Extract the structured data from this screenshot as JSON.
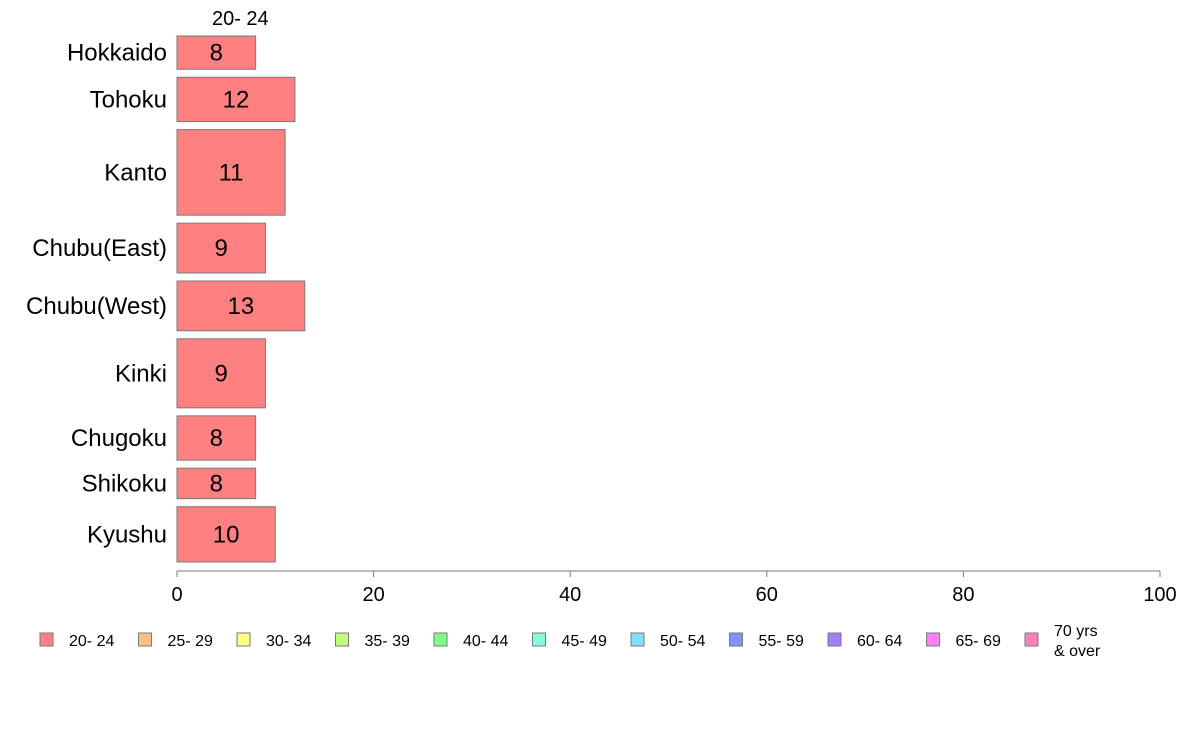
{
  "chart_data": {
    "type": "bar",
    "orientation": "horizontal",
    "stacked": true,
    "title": "",
    "xlabel": "",
    "ylabel": "",
    "xlim": [
      0,
      100
    ],
    "x_ticks": [
      "0",
      "20",
      "40",
      "60",
      "80",
      "100"
    ],
    "grid": false,
    "legend_position": "bottom",
    "categories": [
      "Hokkaido",
      "Tohoku",
      "Kanto",
      "Chubu(East)",
      "Chubu(West)",
      "Kinki",
      "Chugoku",
      "Shikoku",
      "Kyushu"
    ],
    "category_weights": [
      0.75,
      0.95,
      1.7,
      1.05,
      1.05,
      1.4,
      0.95,
      0.7,
      1.15
    ],
    "series": [
      {
        "name": "20- 24",
        "color": "#ff8080",
        "values": [
          8,
          12,
          11,
          9,
          13,
          9,
          8,
          8,
          10
        ]
      }
    ],
    "series_header": "20- 24",
    "legend": [
      {
        "label": "20- 24",
        "color": "#ff8080"
      },
      {
        "label": "25- 29",
        "color": "#ffc080"
      },
      {
        "label": "30- 34",
        "color": "#ffff80"
      },
      {
        "label": "35- 39",
        "color": "#c0ff80"
      },
      {
        "label": "40- 44",
        "color": "#80ff80"
      },
      {
        "label": "45- 49",
        "color": "#80ffdf"
      },
      {
        "label": "50- 54",
        "color": "#80dfff"
      },
      {
        "label": "55- 59",
        "color": "#8090ff"
      },
      {
        "label": "60- 64",
        "color": "#a080ff"
      },
      {
        "label": "65- 69",
        "color": "#ff80ff"
      },
      {
        "label": "70 yrs\n& over",
        "color": "#ff80c0"
      }
    ]
  }
}
